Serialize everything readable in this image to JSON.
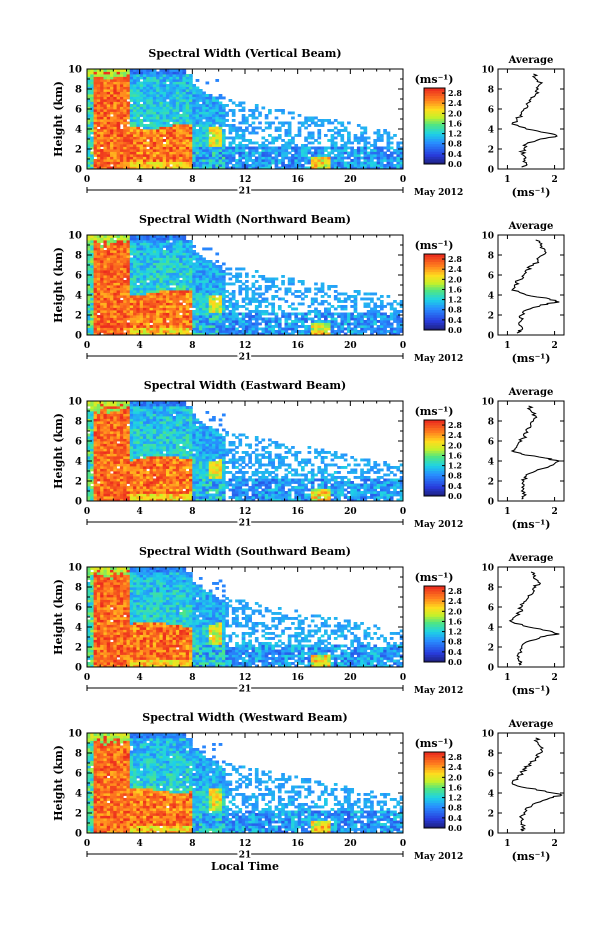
{
  "chart_data": [
    {
      "type": "heatmap",
      "title": "Spectral Width (Vertical Beam)",
      "ylabel": "Height (km)",
      "x_ticks": [
        "0",
        "4",
        "8",
        "12",
        "16",
        "20",
        "0"
      ],
      "y_ticks": [
        "0",
        "2",
        "4",
        "6",
        "8",
        "10"
      ],
      "xlim": [
        0,
        24
      ],
      "ylim": [
        0,
        10
      ],
      "date_day": "21",
      "date_label": "May 2012",
      "colorbar_unit": "(ms⁻¹)",
      "colorbar_ticks": [
        "0.0",
        "0.4",
        "0.8",
        "1.2",
        "1.6",
        "2.0",
        "2.4",
        "2.8"
      ],
      "colorbar_range": [
        0,
        3.0
      ],
      "avg_title": "Average",
      "avg_xlabel": "(ms⁻¹)",
      "avg_x_ticks": [
        "1",
        "2"
      ],
      "avg_xlim": [
        0.8,
        2.2
      ],
      "avg_y_ticks": [
        "0",
        "2",
        "4",
        "6",
        "8",
        "10"
      ],
      "avg_profile": {
        "height": [
          0.2,
          0.5,
          1.0,
          1.5,
          2.0,
          2.5,
          3.0,
          3.3,
          3.6,
          4.0,
          4.5,
          5.0,
          5.5,
          6.0,
          6.5,
          7.0,
          7.5,
          8.0,
          8.5,
          9.0,
          9.5
        ],
        "value": [
          1.3,
          1.4,
          1.35,
          1.3,
          1.35,
          1.4,
          1.7,
          2.05,
          1.85,
          1.4,
          1.1,
          1.2,
          1.3,
          1.35,
          1.4,
          1.5,
          1.6,
          1.65,
          1.7,
          1.6,
          1.55
        ]
      }
    },
    {
      "type": "heatmap",
      "title": "Spectral Width (Northward Beam)",
      "ylabel": "Height (km)",
      "x_ticks": [
        "0",
        "4",
        "8",
        "12",
        "16",
        "20",
        "0"
      ],
      "y_ticks": [
        "0",
        "2",
        "4",
        "6",
        "8",
        "10"
      ],
      "xlim": [
        0,
        24
      ],
      "ylim": [
        0,
        10
      ],
      "date_day": "21",
      "date_label": "May 2012",
      "colorbar_unit": "(ms⁻¹)",
      "colorbar_ticks": [
        "0.0",
        "0.4",
        "0.8",
        "1.2",
        "1.6",
        "2.0",
        "2.4",
        "2.8"
      ],
      "colorbar_range": [
        0,
        3.0
      ],
      "avg_title": "Average",
      "avg_xlabel": "(ms⁻¹)",
      "avg_x_ticks": [
        "1",
        "2"
      ],
      "avg_xlim": [
        0.8,
        2.2
      ],
      "avg_y_ticks": [
        "0",
        "2",
        "4",
        "6",
        "8",
        "10"
      ],
      "avg_profile": {
        "height": [
          0.2,
          0.5,
          1.0,
          1.5,
          2.0,
          2.5,
          3.0,
          3.3,
          3.6,
          4.0,
          4.5,
          5.0,
          5.5,
          6.0,
          6.5,
          7.0,
          7.5,
          8.0,
          8.5,
          9.0,
          9.5
        ],
        "value": [
          1.2,
          1.3,
          1.25,
          1.3,
          1.3,
          1.4,
          1.7,
          2.1,
          1.9,
          1.4,
          1.1,
          1.15,
          1.25,
          1.35,
          1.4,
          1.55,
          1.65,
          1.75,
          1.8,
          1.7,
          1.6
        ]
      }
    },
    {
      "type": "heatmap",
      "title": "Spectral Width (Eastward Beam)",
      "ylabel": "Height (km)",
      "x_ticks": [
        "0",
        "4",
        "8",
        "12",
        "16",
        "20",
        "0"
      ],
      "y_ticks": [
        "0",
        "2",
        "4",
        "6",
        "8",
        "10"
      ],
      "xlim": [
        0,
        24
      ],
      "ylim": [
        0,
        10
      ],
      "date_day": "21",
      "date_label": "May 2012",
      "colorbar_unit": "(ms⁻¹)",
      "colorbar_ticks": [
        "0.0",
        "0.4",
        "0.8",
        "1.2",
        "1.6",
        "2.0",
        "2.4",
        "2.8"
      ],
      "colorbar_range": [
        0,
        3.0
      ],
      "avg_title": "Average",
      "avg_xlabel": "(ms⁻¹)",
      "avg_x_ticks": [
        "1",
        "2"
      ],
      "avg_xlim": [
        0.8,
        2.2
      ],
      "avg_y_ticks": [
        "0",
        "2",
        "4",
        "6",
        "8",
        "10"
      ],
      "avg_profile": {
        "height": [
          0.2,
          0.5,
          1.0,
          1.5,
          2.0,
          2.5,
          3.0,
          3.5,
          4.0,
          4.3,
          4.7,
          5.0,
          5.5,
          6.0,
          6.5,
          7.0,
          7.5,
          8.0,
          8.5,
          9.0,
          9.5
        ],
        "value": [
          1.3,
          1.35,
          1.3,
          1.35,
          1.35,
          1.4,
          1.6,
          1.9,
          2.1,
          1.8,
          1.3,
          1.1,
          1.2,
          1.3,
          1.35,
          1.4,
          1.5,
          1.55,
          1.6,
          1.5,
          1.45
        ]
      }
    },
    {
      "type": "heatmap",
      "title": "Spectral Width (Southward Beam)",
      "ylabel": "Height (km)",
      "x_ticks": [
        "0",
        "4",
        "8",
        "12",
        "16",
        "20",
        "0"
      ],
      "y_ticks": [
        "0",
        "2",
        "4",
        "6",
        "8",
        "10"
      ],
      "xlim": [
        0,
        24
      ],
      "ylim": [
        0,
        10
      ],
      "date_day": "21",
      "date_label": "May 2012",
      "colorbar_unit": "(ms⁻¹)",
      "colorbar_ticks": [
        "0.0",
        "0.4",
        "0.8",
        "1.2",
        "1.6",
        "2.0",
        "2.4",
        "2.8"
      ],
      "colorbar_range": [
        0,
        3.0
      ],
      "avg_title": "Average",
      "avg_xlabel": "(ms⁻¹)",
      "avg_x_ticks": [
        "1",
        "2"
      ],
      "avg_xlim": [
        0.8,
        2.2
      ],
      "avg_y_ticks": [
        "0",
        "2",
        "4",
        "6",
        "8",
        "10"
      ],
      "avg_profile": {
        "height": [
          0.2,
          0.5,
          1.0,
          1.5,
          2.0,
          2.5,
          3.0,
          3.3,
          3.6,
          4.0,
          4.5,
          5.0,
          5.5,
          6.0,
          6.5,
          7.0,
          7.5,
          8.0,
          8.5,
          9.0,
          9.5
        ],
        "value": [
          1.25,
          1.3,
          1.25,
          1.3,
          1.3,
          1.4,
          1.7,
          2.1,
          1.9,
          1.45,
          1.1,
          1.15,
          1.25,
          1.3,
          1.35,
          1.45,
          1.55,
          1.6,
          1.65,
          1.55,
          1.5
        ]
      }
    },
    {
      "type": "heatmap",
      "title": "Spectral Width (Westward Beam)",
      "ylabel": "Height (km)",
      "xlabel": "Local Time",
      "x_ticks": [
        "0",
        "4",
        "8",
        "12",
        "16",
        "20",
        "0"
      ],
      "y_ticks": [
        "0",
        "2",
        "4",
        "6",
        "8",
        "10"
      ],
      "xlim": [
        0,
        24
      ],
      "ylim": [
        0,
        10
      ],
      "date_day": "21",
      "date_label": "May 2012",
      "colorbar_unit": "(ms⁻¹)",
      "colorbar_ticks": [
        "0.0",
        "0.4",
        "0.8",
        "1.2",
        "1.6",
        "2.0",
        "2.4",
        "2.8"
      ],
      "colorbar_range": [
        0,
        3.0
      ],
      "avg_title": "Average",
      "avg_xlabel": "(ms⁻¹)",
      "avg_x_ticks": [
        "1",
        "2"
      ],
      "avg_xlim": [
        0.8,
        2.2
      ],
      "avg_y_ticks": [
        "0",
        "2",
        "4",
        "6",
        "8",
        "10"
      ],
      "avg_profile": {
        "height": [
          0.2,
          0.5,
          1.0,
          1.5,
          2.0,
          2.5,
          3.0,
          3.5,
          3.8,
          4.2,
          4.6,
          5.0,
          5.5,
          6.0,
          6.5,
          7.0,
          7.5,
          8.0,
          8.5,
          9.0,
          9.5
        ],
        "value": [
          1.3,
          1.35,
          1.3,
          1.3,
          1.35,
          1.4,
          1.6,
          1.9,
          2.15,
          1.8,
          1.3,
          1.1,
          1.2,
          1.3,
          1.4,
          1.5,
          1.6,
          1.7,
          1.75,
          1.65,
          1.6
        ]
      }
    }
  ]
}
